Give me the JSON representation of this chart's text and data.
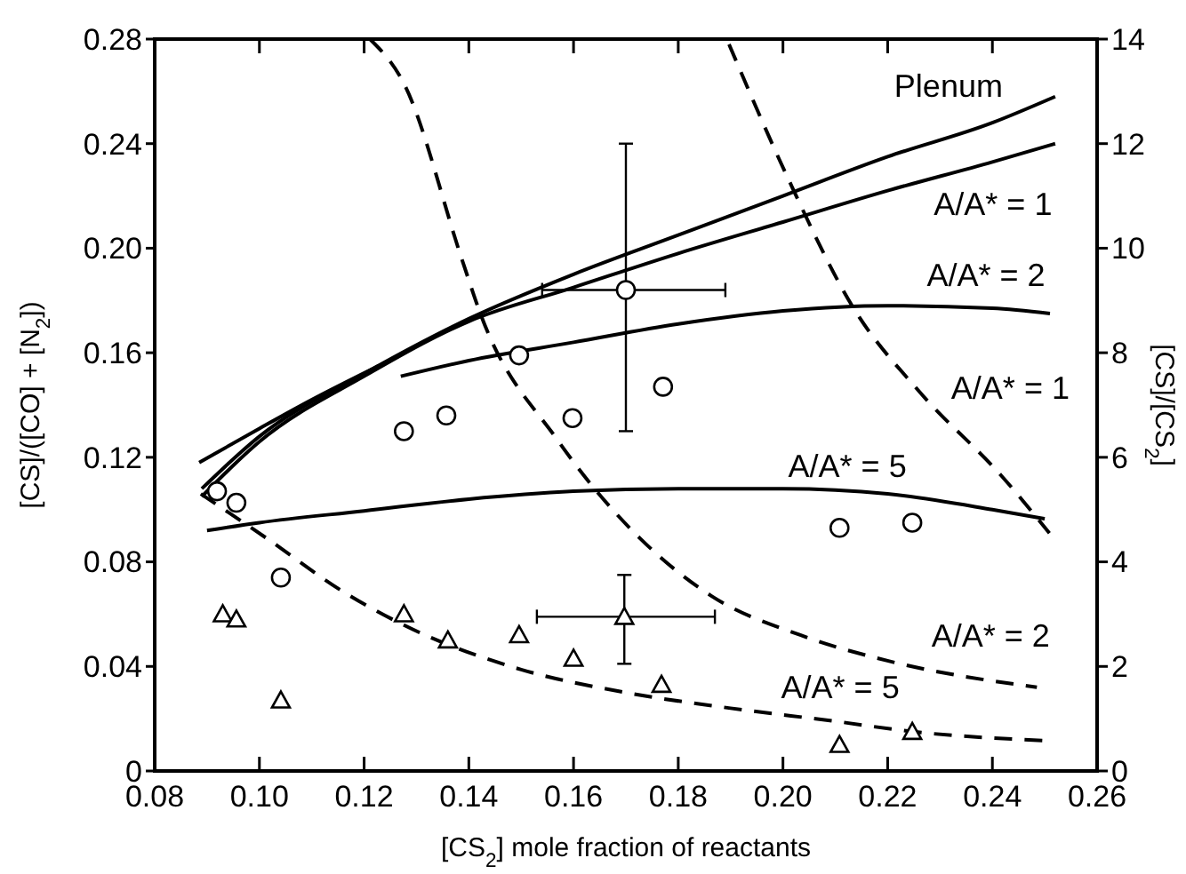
{
  "chart_data": {
    "type": "line",
    "xlabel": "[CS$_{2}$] mole fraction of reactants",
    "ylabel": "[CS]/([CO] + [N$_{2}$])",
    "y2label": "[CS]/[CS$_{2}$]",
    "xlim": [
      0.08,
      0.26
    ],
    "xticks": [
      0.08,
      {
        "value": 0.1,
        "label": "0.10"
      },
      0.12,
      0.14,
      0.16,
      0.18,
      {
        "value": 0.2,
        "label": "0.20"
      },
      0.22,
      0.24,
      0.26
    ],
    "ylim": [
      0,
      0.28
    ],
    "yticks": [
      0,
      0.04,
      0.08,
      0.12,
      0.16,
      {
        "value": 0.2,
        "label": "0.20"
      },
      0.24,
      0.28
    ],
    "y2lim": [
      0,
      14
    ],
    "y2ticks": [
      0,
      2,
      4,
      6,
      8,
      10,
      12,
      14
    ],
    "grid": false,
    "series": [
      {
        "name": "Plenum",
        "line_style": "solid",
        "color": "#000000",
        "x": [
          0.089,
          0.1,
          0.12,
          0.14,
          0.16,
          0.18,
          0.2,
          0.22,
          0.24,
          0.252
        ],
        "values": [
          0.108,
          0.128,
          0.152,
          0.173,
          0.19,
          0.205,
          0.22,
          0.235,
          0.248,
          0.258
        ]
      },
      {
        "name": "A/A* = 1",
        "line_style": "solid",
        "color": "#000000",
        "x": [
          0.089,
          0.1,
          0.12,
          0.14,
          0.16,
          0.18,
          0.2,
          0.22,
          0.24,
          0.252
        ],
        "values": [
          0.105,
          0.126,
          0.151,
          0.172,
          0.185,
          0.198,
          0.21,
          0.222,
          0.233,
          0.24
        ]
      },
      {
        "line_style": "solid",
        "color": "#000000",
        "x": [
          0.0885,
          0.1,
          0.11,
          0.1228
        ],
        "values": [
          0.118,
          0.131,
          0.142,
          0.155
        ]
      },
      {
        "name": "A/A* = 2",
        "line_style": "solid",
        "color": "#000000",
        "x": [
          0.127,
          0.14,
          0.16,
          0.18,
          0.2,
          0.22,
          0.24,
          0.251
        ],
        "values": [
          0.151,
          0.157,
          0.164,
          0.171,
          0.176,
          0.178,
          0.177,
          0.175
        ]
      },
      {
        "name": "A/A* = 5",
        "line_style": "solid",
        "color": "#000000",
        "x": [
          0.09,
          0.1,
          0.12,
          0.14,
          0.16,
          0.18,
          0.2,
          0.22,
          0.24,
          0.25
        ],
        "values": [
          0.092,
          0.095,
          0.0995,
          0.104,
          0.107,
          0.108,
          0.108,
          0.106,
          0.1,
          0.0965
        ]
      },
      {
        "name": "A/A* = 2",
        "line_style": "dashed",
        "axis": "y2",
        "color": "#000000",
        "x": [
          0.1211,
          0.1276,
          0.1388,
          0.1422,
          0.1568,
          0.1636,
          0.1727,
          0.1863,
          0.2033,
          0.2203,
          0.2485
        ],
        "values": [
          14,
          13.15,
          9.75,
          8.75,
          6.35,
          5.45,
          4.45,
          3.35,
          2.6,
          2.1,
          1.6
        ]
      },
      {
        "name": "A/A* = 1",
        "line_style": "dashed",
        "axis": "y2",
        "color": "#000000",
        "x": [
          0.1897,
          0.2009,
          0.2135,
          0.2261,
          0.2417,
          0.2509
        ],
        "values": [
          13.9,
          11.35,
          8.85,
          7.25,
          5.65,
          4.55
        ]
      },
      {
        "name": "A/A* = 5",
        "line_style": "dashed",
        "axis": "y2",
        "color": "#000000",
        "x": [
          0.0888,
          0.1014,
          0.116,
          0.1276,
          0.15,
          0.17,
          0.19,
          0.21,
          0.225,
          0.25
        ],
        "values": [
          5.3,
          4.45,
          3.43,
          2.79,
          1.94,
          1.5,
          1.2,
          0.95,
          0.75,
          0.58
        ]
      },
      {
        "type": "scatter",
        "marker": "circle",
        "color": "#000000",
        "x": [
          0.0919,
          0.0956,
          0.1041,
          0.1276,
          0.1357,
          0.1496,
          0.1598,
          0.17,
          0.1771,
          0.2108,
          0.2247
        ],
        "values": [
          0.107,
          0.1026,
          0.074,
          0.13,
          0.136,
          0.159,
          0.135,
          0.184,
          0.147,
          0.093,
          0.095
        ],
        "errors": [
          null,
          null,
          null,
          null,
          null,
          null,
          null,
          [
            0.13,
            0.24
          ],
          null,
          null,
          null
        ],
        "xerrors": [
          null,
          null,
          null,
          null,
          null,
          null,
          null,
          [
            0.154,
            0.189
          ],
          null,
          null,
          null
        ]
      },
      {
        "type": "scatter",
        "marker": "triangle",
        "color": "#000000",
        "x": [
          0.093,
          0.0956,
          0.1041,
          0.1276,
          0.136,
          0.1496,
          0.16,
          0.1697,
          0.1768,
          0.2108,
          0.2247
        ],
        "values": [
          0.06,
          0.058,
          0.027,
          0.06,
          0.05,
          0.052,
          0.043,
          0.059,
          0.033,
          0.01,
          0.015
        ],
        "errors": [
          null,
          null,
          null,
          null,
          null,
          null,
          null,
          [
            0.041,
            0.075
          ],
          null,
          null,
          null
        ],
        "xerrors": [
          null,
          null,
          null,
          null,
          null,
          null,
          null,
          [
            0.153,
            0.187
          ],
          null,
          null,
          null
        ]
      }
    ]
  }
}
